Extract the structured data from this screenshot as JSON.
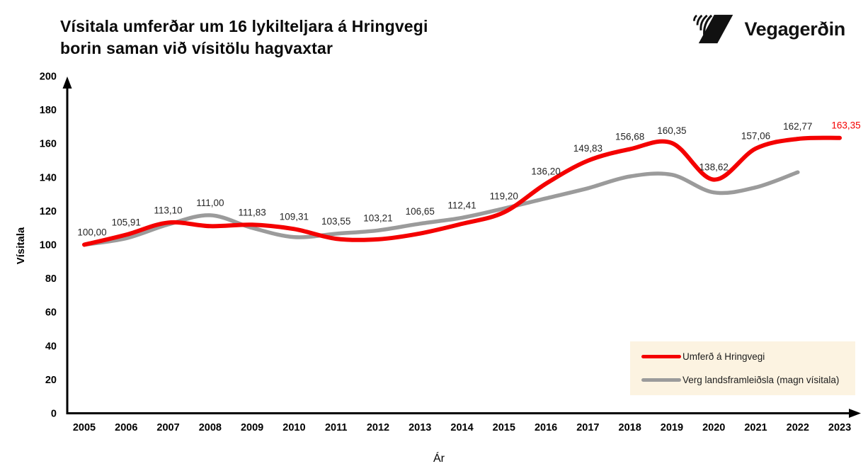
{
  "header": {
    "title_line1": "Vísitala umferðar um 16 lykilteljara á Hringvegi",
    "title_line2": "borin saman við vísitölu hagvaxtar",
    "logo_text": "Vegagerðin"
  },
  "colors": {
    "traffic_red": "#f40000",
    "gdp_gray": "#9b9b9b",
    "data_label": "#262626",
    "axis": "#000000",
    "legend_bg": "#fcf3e1"
  },
  "chart_data": {
    "type": "line",
    "title": "Vísitala umferðar um 16 lykilteljara á Hringvegi borin saman við vísitölu hagvaxtar",
    "xlabel": "Ár",
    "ylabel": "Vísitala",
    "ylim": [
      0,
      200
    ],
    "ytick_step": 20,
    "grid": false,
    "legend_position": "bottom-right",
    "x": [
      2005,
      2006,
      2007,
      2008,
      2009,
      2010,
      2011,
      2012,
      2013,
      2014,
      2015,
      2016,
      2017,
      2018,
      2019,
      2020,
      2021,
      2022,
      2023
    ],
    "series": [
      {
        "name": "Umferð á Hringvegi",
        "color": "#f40000",
        "line_width": 6,
        "values": [
          100.0,
          105.91,
          113.1,
          111.0,
          111.83,
          109.31,
          103.55,
          103.21,
          106.65,
          112.41,
          119.2,
          136.2,
          149.83,
          156.68,
          160.35,
          138.62,
          157.06,
          162.77,
          163.35
        ],
        "point_labels": [
          "100,00",
          "105,91",
          "113,10",
          "111,00",
          "111,83",
          "109,31",
          "103,55",
          "103,21",
          "106,65",
          "112,41",
          "119,20",
          "136,20",
          "149,83",
          "156,68",
          "160,35",
          "138,62",
          "157,06",
          "162,77",
          "163,35"
        ],
        "last_label_color": "#f40000"
      },
      {
        "name": "Verg landsframleiðsla (magn vísitala)",
        "color": "#9b9b9b",
        "line_width": 5.5,
        "values": [
          100,
          103.8,
          112,
          117.5,
          110,
          104.5,
          106.5,
          108.5,
          112.5,
          116,
          121.5,
          127.5,
          133.5,
          140.5,
          141.5,
          131,
          134,
          143
        ]
      }
    ]
  },
  "legend": {
    "items": [
      "Umferð á Hringvegi",
      "Verg landsframleiðsla (magn vísitala)"
    ]
  }
}
